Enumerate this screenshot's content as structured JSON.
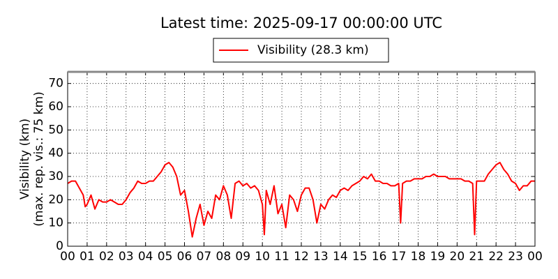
{
  "chart_data": {
    "type": "line",
    "title": "Latest time: 2025-09-17 00:00:00 UTC",
    "ylabel": [
      "Visibility (km)",
      "(max. rep. vis.: 75 km)"
    ],
    "xlim": [
      0,
      24
    ],
    "ylim": [
      0,
      75
    ],
    "yticks": [
      0,
      10,
      20,
      30,
      40,
      50,
      60,
      70
    ],
    "xticks": [
      {
        "value": 0,
        "label": "00"
      },
      {
        "value": 1,
        "label": "01"
      },
      {
        "value": 2,
        "label": "02"
      },
      {
        "value": 3,
        "label": "03"
      },
      {
        "value": 4,
        "label": "04"
      },
      {
        "value": 5,
        "label": "05"
      },
      {
        "value": 6,
        "label": "06"
      },
      {
        "value": 7,
        "label": "07"
      },
      {
        "value": 8,
        "label": "08"
      },
      {
        "value": 9,
        "label": "09"
      },
      {
        "value": 10,
        "label": "10"
      },
      {
        "value": 11,
        "label": "11"
      },
      {
        "value": 12,
        "label": "12"
      },
      {
        "value": 13,
        "label": "13"
      },
      {
        "value": 14,
        "label": "14"
      },
      {
        "value": 15,
        "label": "15"
      },
      {
        "value": 16,
        "label": "16"
      },
      {
        "value": 17,
        "label": "17"
      },
      {
        "value": 18,
        "label": "18"
      },
      {
        "value": 19,
        "label": "19"
      },
      {
        "value": 20,
        "label": "20"
      },
      {
        "value": 21,
        "label": "21"
      },
      {
        "value": 22,
        "label": "22"
      },
      {
        "value": 23,
        "label": "23"
      },
      {
        "value": 24,
        "label": "00"
      }
    ],
    "grid": true,
    "legend": "top",
    "x": [
      0,
      0.2,
      0.4,
      0.6,
      0.8,
      0.9,
      1.0,
      1.2,
      1.4,
      1.6,
      1.8,
      2.0,
      2.2,
      2.4,
      2.6,
      2.8,
      3.0,
      3.2,
      3.4,
      3.6,
      3.8,
      4.0,
      4.2,
      4.4,
      4.6,
      4.8,
      5.0,
      5.2,
      5.4,
      5.6,
      5.8,
      6.0,
      6.2,
      6.4,
      6.6,
      6.8,
      7.0,
      7.2,
      7.4,
      7.6,
      7.8,
      8.0,
      8.2,
      8.4,
      8.6,
      8.8,
      9.0,
      9.2,
      9.4,
      9.6,
      9.8,
      10.0,
      10.1,
      10.2,
      10.4,
      10.6,
      10.8,
      11.0,
      11.2,
      11.4,
      11.6,
      11.8,
      12.0,
      12.2,
      12.4,
      12.6,
      12.8,
      13.0,
      13.2,
      13.4,
      13.6,
      13.8,
      14.0,
      14.2,
      14.4,
      14.6,
      14.8,
      15.0,
      15.2,
      15.4,
      15.6,
      15.8,
      16.0,
      16.2,
      16.4,
      16.6,
      16.8,
      17.0,
      17.1,
      17.2,
      17.4,
      17.6,
      17.8,
      18.0,
      18.2,
      18.4,
      18.6,
      18.8,
      19.0,
      19.2,
      19.4,
      19.6,
      19.8,
      20.0,
      20.2,
      20.4,
      20.6,
      20.8,
      20.9,
      21.0,
      21.2,
      21.4,
      21.6,
      21.8,
      22.0,
      22.2,
      22.4,
      22.6,
      22.8,
      23.0,
      23.2,
      23.4,
      23.6,
      23.8,
      24.0
    ],
    "series": [
      {
        "name": "Visibility (28.3 km)",
        "color": "#ff0000",
        "values": [
          27,
          28,
          28,
          25,
          22,
          17,
          18,
          22,
          16,
          20,
          19,
          19,
          20,
          19,
          18,
          18,
          20,
          23,
          25,
          28,
          27,
          27,
          28,
          28,
          30,
          32,
          35,
          36,
          34,
          30,
          22,
          24,
          15,
          4,
          12,
          18,
          9,
          15,
          12,
          22,
          20,
          26,
          22,
          12,
          27,
          28,
          26,
          27,
          25,
          26,
          24,
          18,
          5,
          24,
          18,
          26,
          14,
          18,
          8,
          22,
          20,
          15,
          22,
          25,
          25,
          20,
          10,
          18,
          16,
          20,
          22,
          21,
          24,
          25,
          24,
          26,
          27,
          28,
          30,
          29,
          31,
          28,
          28,
          27,
          27,
          26,
          26,
          27,
          10,
          27,
          28,
          28,
          29,
          29,
          29,
          30,
          30,
          31,
          30,
          30,
          30,
          29,
          29,
          29,
          29,
          28,
          28,
          27,
          5,
          28,
          28,
          28,
          31,
          33,
          35,
          36,
          33,
          31,
          28,
          27,
          24,
          26,
          26,
          28,
          28
        ]
      }
    ]
  }
}
